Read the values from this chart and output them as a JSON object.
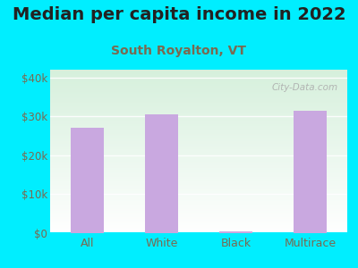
{
  "title": "Median per capita income in 2022",
  "subtitle": "South Royalton, VT",
  "categories": [
    "All",
    "White",
    "Black",
    "Multirace"
  ],
  "values": [
    27000,
    30500,
    500,
    31500
  ],
  "bar_color": "#c9a8e0",
  "background_outer": "#00eeff",
  "background_plot_topleft": "#d6f0dc",
  "background_plot_bottomright": "#ffffff",
  "title_color": "#222222",
  "subtitle_color": "#7a6a50",
  "tick_label_color": "#7a6a50",
  "ytick_labels": [
    "$0",
    "$10k",
    "$20k",
    "$30k",
    "$40k"
  ],
  "ytick_values": [
    0,
    10000,
    20000,
    30000,
    40000
  ],
  "ylim": [
    0,
    42000
  ],
  "title_fontsize": 14,
  "subtitle_fontsize": 10,
  "watermark": "City-Data.com"
}
